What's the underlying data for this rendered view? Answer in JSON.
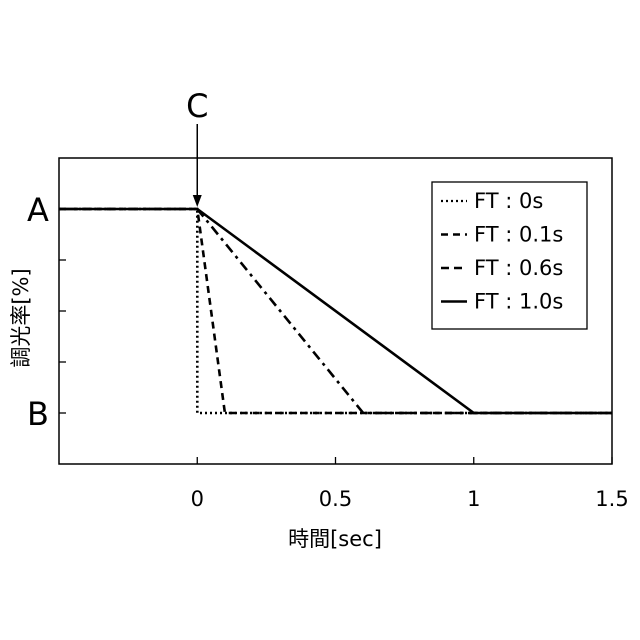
{
  "chart_data": {
    "type": "line",
    "title": "",
    "xlabel": "時間[sec]",
    "ylabel": "調光率[%]",
    "xlim": [
      -0.5,
      1.5
    ],
    "x_ticks": [
      0,
      0.5,
      1,
      1.5
    ],
    "x_tick_labels": [
      "0",
      "0.5",
      "1",
      "1.5"
    ],
    "y_levels": [
      {
        "label": "A",
        "value": 1
      },
      {
        "label": "B",
        "value": 0
      }
    ],
    "ylim": [
      -0.25,
      1.25
    ],
    "y_ticks": [
      0,
      0.25,
      0.5,
      0.75,
      1
    ],
    "annotation": {
      "label": "C",
      "x": 0,
      "y": 1
    },
    "grid": false,
    "legend_position": "top-right",
    "series": [
      {
        "name": "FT : 0s",
        "style": "dotted",
        "x": [
          -0.5,
          0,
          0,
          1.5
        ],
        "y": [
          1,
          1,
          0,
          0
        ]
      },
      {
        "name": "FT : 0.1s",
        "style": "dashed",
        "x": [
          -0.5,
          0,
          0.1,
          1.5
        ],
        "y": [
          1,
          1,
          0,
          0
        ]
      },
      {
        "name": "FT : 0.6s",
        "style": "dashdot",
        "x": [
          -0.5,
          0,
          0.6,
          1.5
        ],
        "y": [
          1,
          1,
          0,
          0
        ]
      },
      {
        "name": "FT : 1.0s",
        "style": "solid",
        "x": [
          -0.5,
          0,
          1.0,
          1.5
        ],
        "y": [
          1,
          1,
          0,
          0
        ]
      }
    ]
  }
}
